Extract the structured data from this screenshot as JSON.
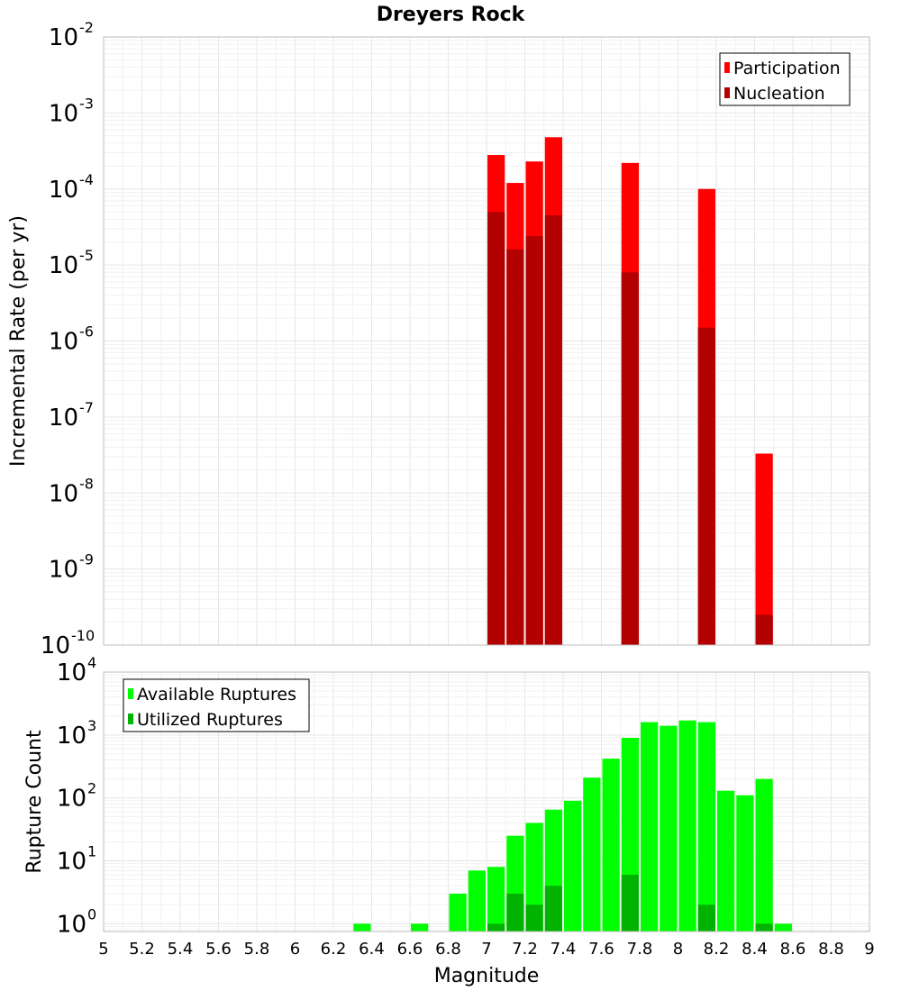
{
  "chart_data": [
    {
      "type": "bar",
      "title": "Dreyers Rock",
      "xlabel": "",
      "ylabel": "Incremental Rate (per yr)",
      "xlim": [
        5,
        9
      ],
      "ylim": [
        1e-10,
        0.01
      ],
      "y_scale": "log",
      "grid": true,
      "bar_width": 0.1,
      "legend_position": "top-right",
      "series": [
        {
          "name": "Participation",
          "color": "#ff0000",
          "x": [
            7.05,
            7.15,
            7.25,
            7.35,
            7.75,
            8.15,
            8.45
          ],
          "values": [
            0.00028,
            0.00012,
            0.00023,
            0.00048,
            0.00022,
            0.0001,
            3.3e-08
          ]
        },
        {
          "name": "Nucleation",
          "color": "#b30000",
          "x": [
            7.05,
            7.15,
            7.25,
            7.35,
            7.75,
            8.15,
            8.45
          ],
          "values": [
            5e-05,
            1.6e-05,
            2.4e-05,
            4.5e-05,
            8e-06,
            1.5e-06,
            2.5e-10
          ]
        }
      ]
    },
    {
      "type": "bar",
      "title": "",
      "xlabel": "Magnitude",
      "ylabel": "Rupture Count",
      "xlim": [
        5,
        9
      ],
      "ylim": [
        0.75,
        10000
      ],
      "y_scale": "log",
      "grid": true,
      "bar_width": 0.1,
      "legend_position": "top-left",
      "x_ticks": [
        "5",
        "5.2",
        "5.4",
        "5.6",
        "5.8",
        "6",
        "6.2",
        "6.4",
        "6.6",
        "6.8",
        "7",
        "7.2",
        "7.4",
        "7.6",
        "7.8",
        "8",
        "8.2",
        "8.4",
        "8.6",
        "8.8",
        "9"
      ],
      "series": [
        {
          "name": "Available Ruptures",
          "color": "#00ff00",
          "x": [
            6.35,
            6.65,
            6.85,
            6.95,
            7.05,
            7.15,
            7.25,
            7.35,
            7.45,
            7.55,
            7.65,
            7.75,
            7.85,
            7.95,
            8.05,
            8.15,
            8.25,
            8.35,
            8.45,
            8.55
          ],
          "values": [
            1,
            1,
            3,
            7,
            8,
            25,
            40,
            65,
            90,
            210,
            420,
            900,
            1600,
            1400,
            1700,
            1600,
            130,
            110,
            200,
            1
          ]
        },
        {
          "name": "Utilized Ruptures",
          "color": "#00b300",
          "x": [
            7.05,
            7.15,
            7.25,
            7.35,
            7.75,
            8.15,
            8.45
          ],
          "values": [
            1,
            3,
            2,
            4,
            6,
            2,
            1
          ]
        }
      ]
    }
  ]
}
